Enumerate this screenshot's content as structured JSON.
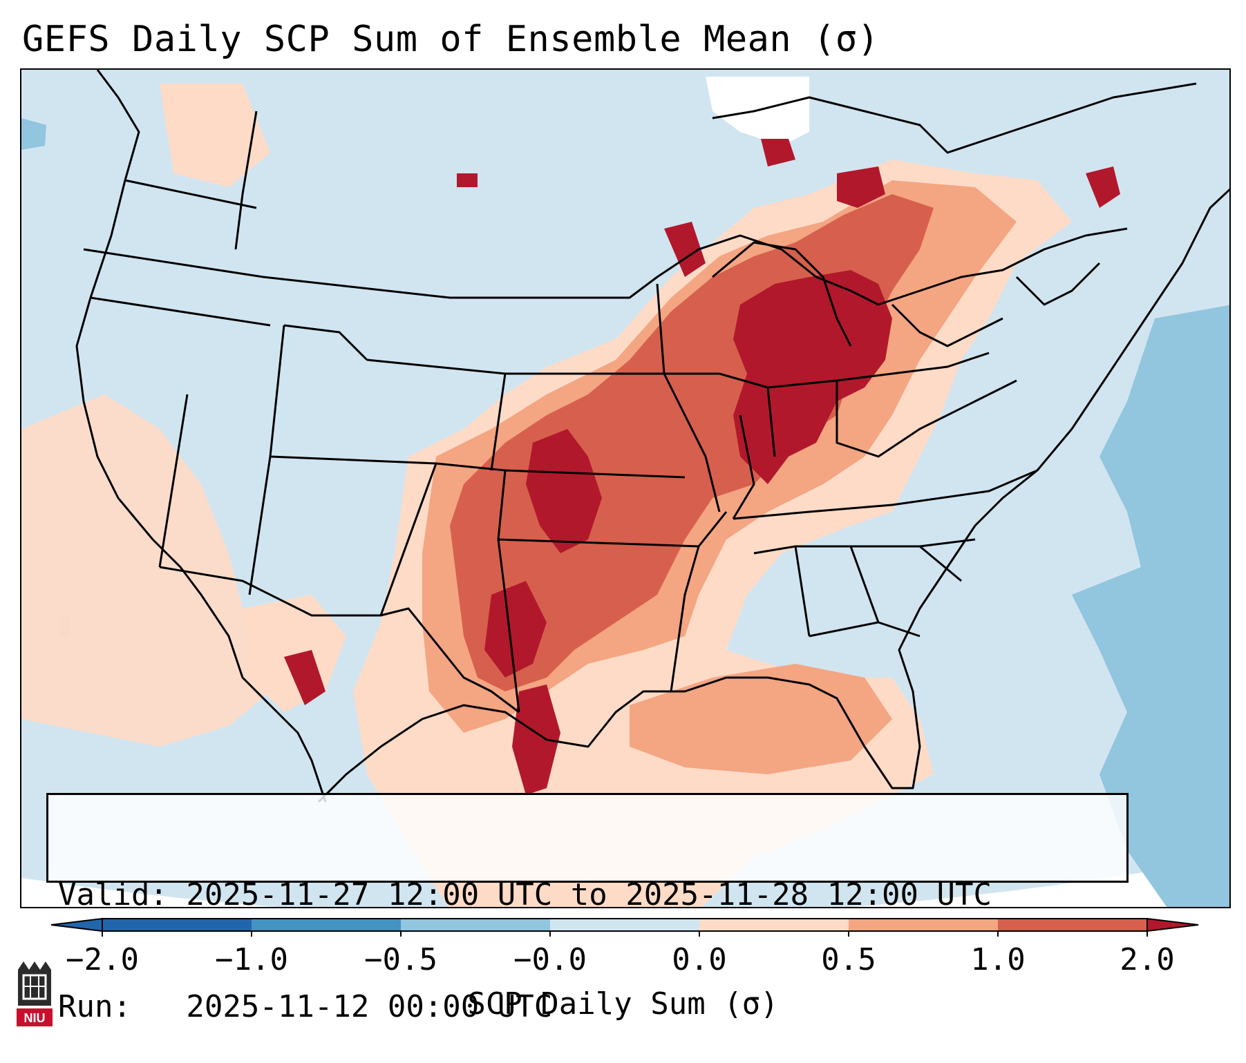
{
  "title": "GEFS Daily SCP Sum of Ensemble Mean (σ)",
  "info": {
    "valid": "Valid: 2025-11-27 12:00 UTC to 2025-11-28 12:00 UTC",
    "run": "Run:   2025-11-12 00:00 UTC"
  },
  "colorbar": {
    "label": "SCP Daily Sum (σ)",
    "ticks": [
      "−2.0",
      "−1.0",
      "−0.5",
      "−0.0",
      "0.0",
      "0.5",
      "1.0",
      "2.0"
    ],
    "colors": [
      "#2166ac",
      "#4393c3",
      "#92c5de",
      "#d1e5f0",
      "#fddbc7",
      "#f4a582",
      "#d6604d",
      "#b2182b"
    ]
  },
  "logo": {
    "text": "NIU"
  }
}
